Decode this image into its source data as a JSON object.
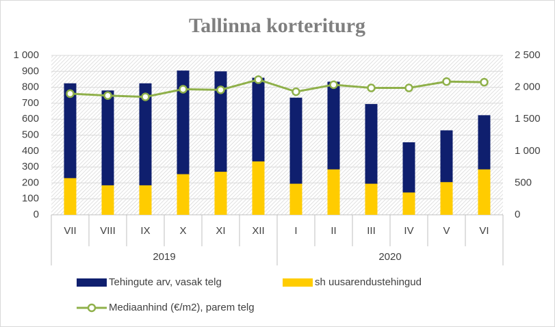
{
  "chart_data": {
    "type": "bar",
    "title": "Tallinna korteriturg",
    "groups": [
      {
        "name": "2019",
        "categories": [
          "VII",
          "VIII",
          "IX",
          "X",
          "XI",
          "XII"
        ]
      },
      {
        "name": "2020",
        "categories": [
          "I",
          "II",
          "III",
          "IV",
          "V",
          "VI"
        ]
      }
    ],
    "series": [
      {
        "name": "Tehingute arv, vasak telg",
        "type": "bar",
        "color": "#0f1f6e",
        "values": [
          825,
          780,
          825,
          905,
          900,
          860,
          735,
          835,
          695,
          455,
          530,
          625
        ]
      },
      {
        "name": "sh uusarendustehingud",
        "type": "bar",
        "color": "#ffcc00",
        "values": [
          230,
          185,
          185,
          255,
          270,
          335,
          195,
          285,
          195,
          140,
          205,
          285
        ]
      },
      {
        "name": "Mediaanhind (€/m2), parem telg",
        "type": "line",
        "axis": "y2",
        "color": "#8fb04a",
        "values": [
          1900,
          1870,
          1850,
          1970,
          1960,
          2120,
          1930,
          2040,
          1990,
          1990,
          2090,
          2080
        ]
      }
    ],
    "ylim": [
      0,
      1000
    ],
    "yticks": [
      0,
      100,
      200,
      300,
      400,
      500,
      600,
      700,
      800,
      900,
      {
        "value": 1000,
        "label": "1 000"
      }
    ],
    "y2lim": [
      0,
      2500
    ],
    "y2ticks": [
      0,
      500,
      {
        "value": 1000,
        "label": "1 000"
      },
      {
        "value": 1500,
        "label": "1 500"
      },
      {
        "value": 2000,
        "label": "2 000"
      },
      {
        "value": 2500,
        "label": "2 500"
      }
    ],
    "grid": true
  }
}
